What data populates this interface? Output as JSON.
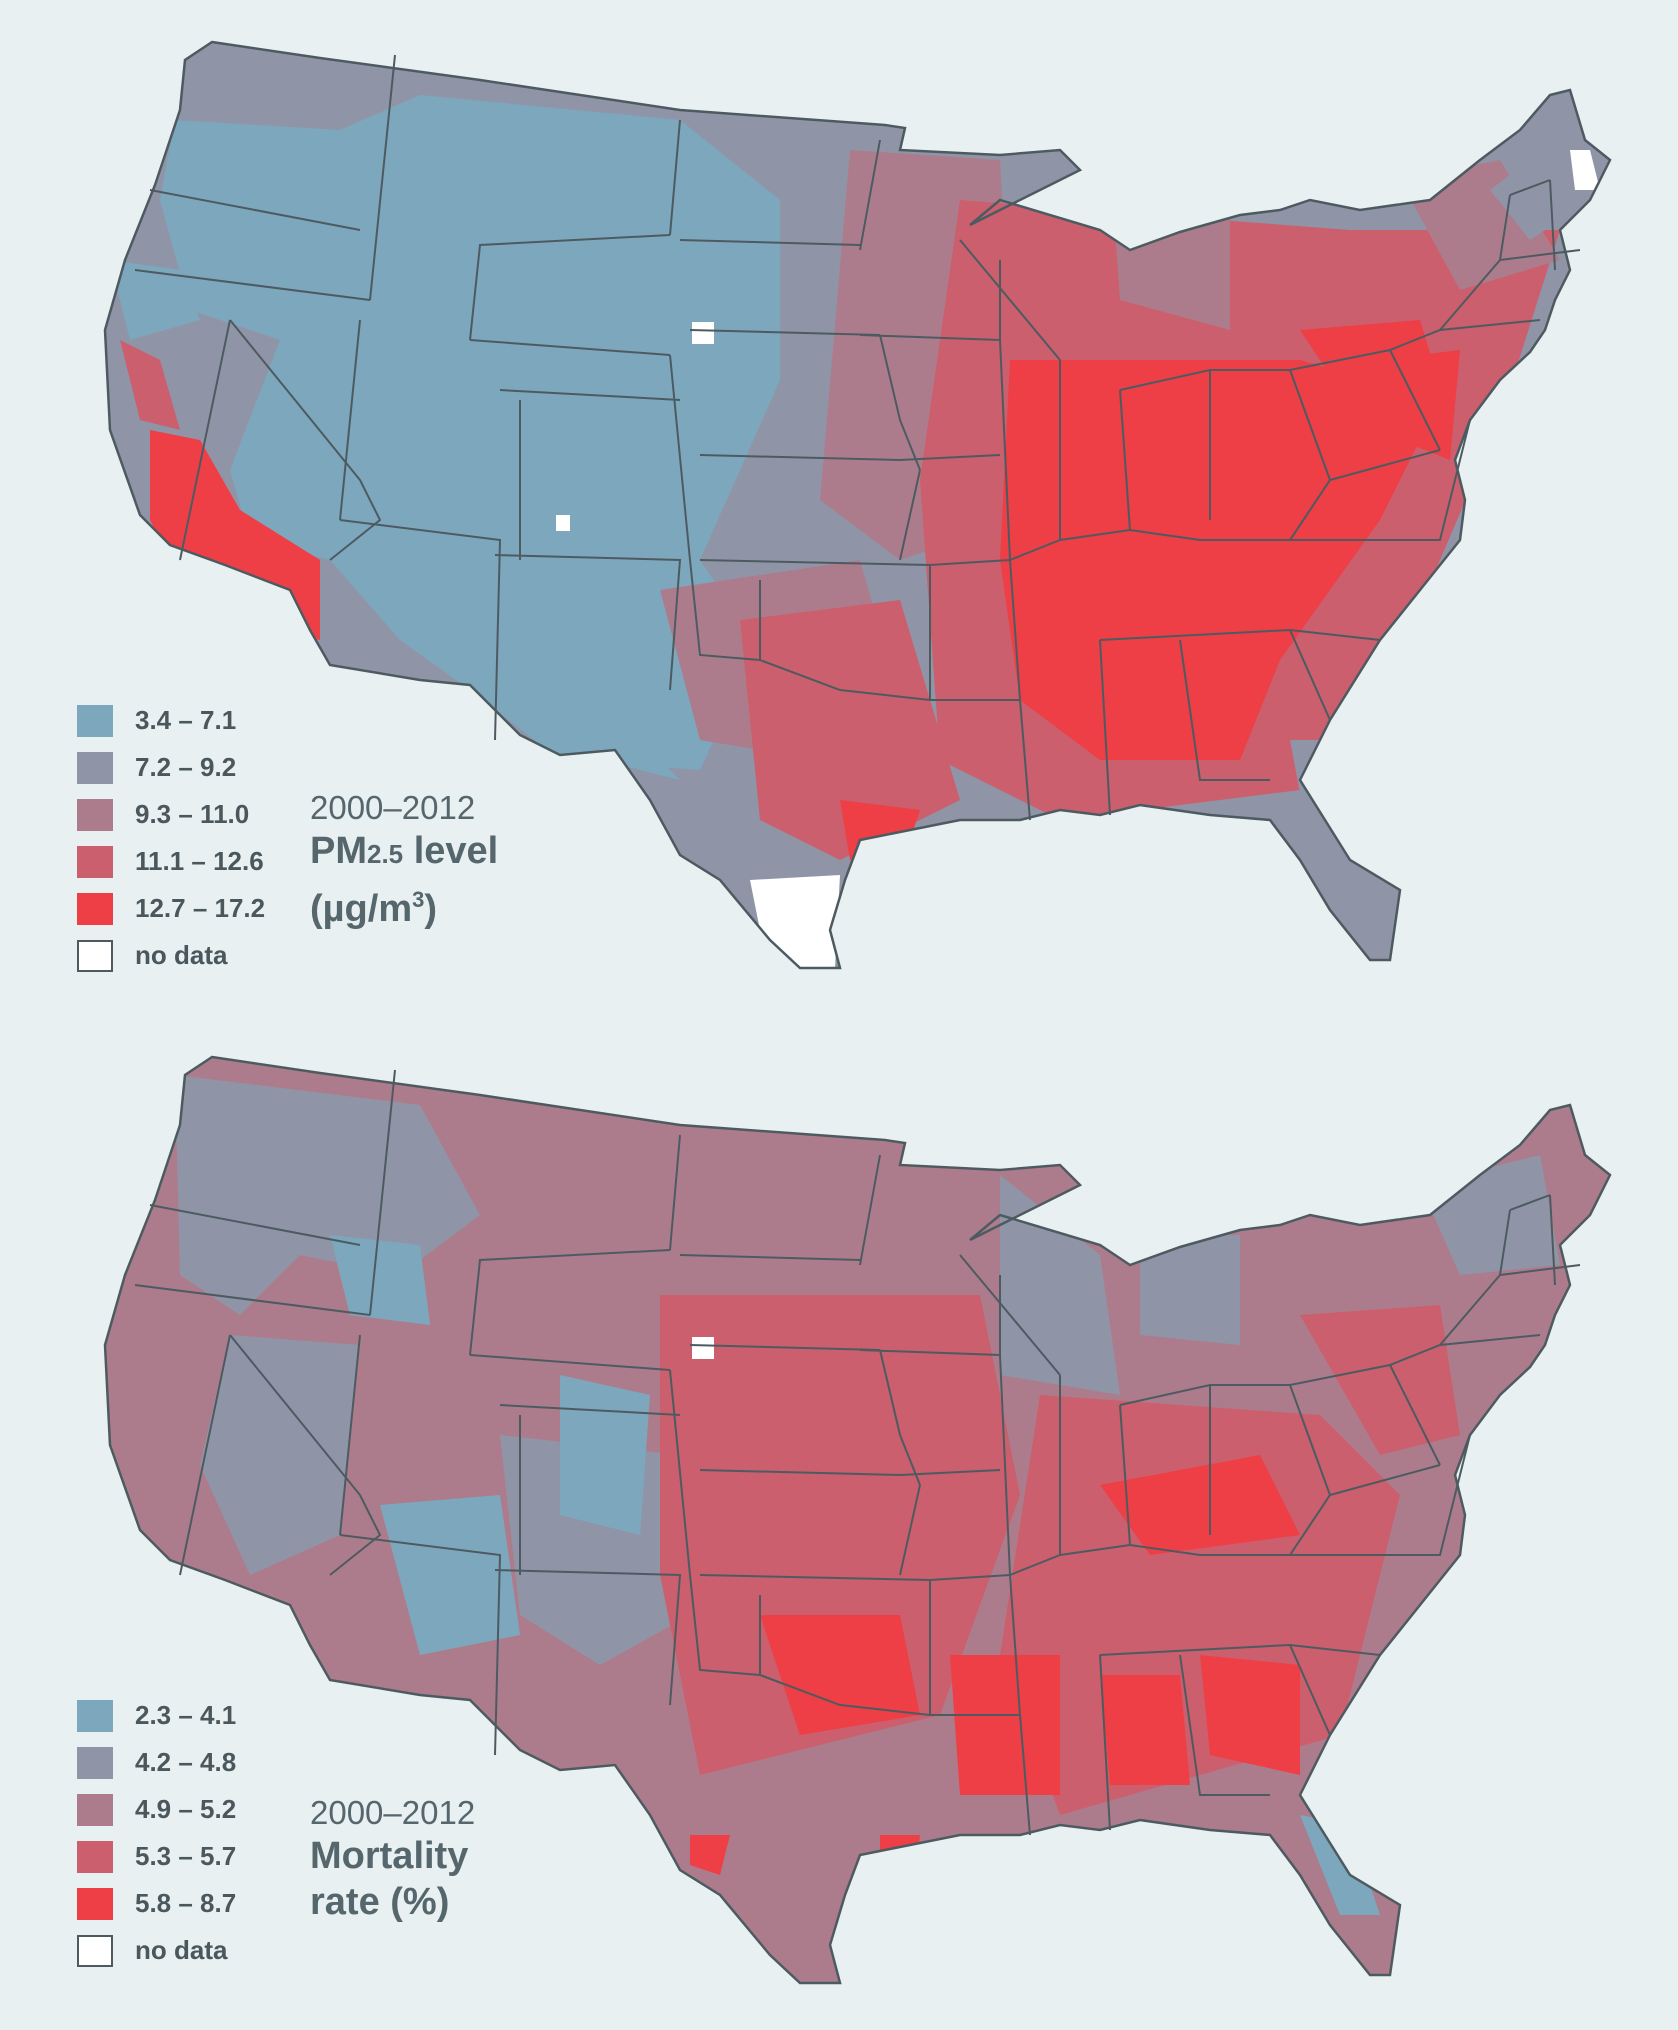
{
  "colors": {
    "background": "#e8f0f1",
    "class1": "#7da7bd",
    "class2": "#8f95a7",
    "class3": "#ad7c8c",
    "class4": "#cb5f6d",
    "class5": "#ee3e46",
    "no_data": "#ffffff",
    "border": "#4d5b61"
  },
  "maps": [
    {
      "id": "pm25",
      "period": "2000–2012",
      "measure_line1_main": "PM",
      "measure_line1_sub": "2.5",
      "measure_line1_rest": " level",
      "measure_line2_main": "(µg/m",
      "measure_line2_sup": "3",
      "measure_line2_rest": ")",
      "legend": [
        {
          "label": "3.4 – 7.1",
          "color": "#7da7bd"
        },
        {
          "label": "7.2 – 9.2",
          "color": "#8f95a7"
        },
        {
          "label": "9.3 – 11.0",
          "color": "#ad7c8c"
        },
        {
          "label": "11.1 – 12.6",
          "color": "#cb5f6d"
        },
        {
          "label": "12.7 – 17.2",
          "color": "#ee3e46"
        },
        {
          "label": "no data",
          "color": "#ffffff"
        }
      ]
    },
    {
      "id": "mortality",
      "period": "2000–2012",
      "measure_line1": "Mortality",
      "measure_line2": "rate (%)",
      "legend": [
        {
          "label": "2.3 – 4.1",
          "color": "#7da7bd"
        },
        {
          "label": "4.2 – 4.8",
          "color": "#8f95a7"
        },
        {
          "label": "4.9 – 5.2",
          "color": "#ad7c8c"
        },
        {
          "label": "5.3 – 5.7",
          "color": "#cb5f6d"
        },
        {
          "label": "5.8 – 8.7",
          "color": "#ee3e46"
        },
        {
          "label": "no data",
          "color": "#ffffff"
        }
      ]
    }
  ]
}
